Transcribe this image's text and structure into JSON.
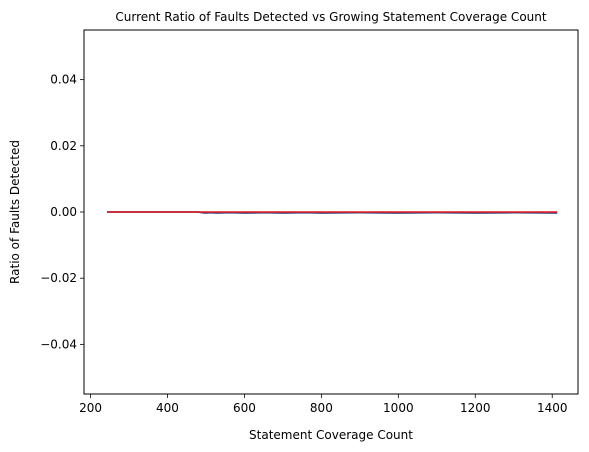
{
  "chart_data": {
    "type": "line",
    "title": "Current Ratio of Faults Detected vs Growing Statement Coverage Count",
    "xlabel": "Statement Coverage Count",
    "ylabel": "Ratio of Faults Detected",
    "xlim": [
      183,
      1467
    ],
    "ylim": [
      -0.055,
      0.055
    ],
    "xticks": [
      200,
      400,
      600,
      800,
      1000,
      1200,
      1400
    ],
    "xtick_labels": [
      "200",
      "400",
      "600",
      "800",
      "1000",
      "1200",
      "1400"
    ],
    "yticks": [
      -0.04,
      -0.02,
      0.0,
      0.02,
      0.04
    ],
    "ytick_labels": [
      "−0.04",
      "−0.02",
      "0.00",
      "0.02",
      "0.04"
    ],
    "grid": false,
    "series": [
      {
        "color": "#3b4a8c",
        "x": [
          243,
          250,
          260,
          275,
          290,
          300,
          310,
          320,
          330,
          340,
          480,
          490,
          500,
          510,
          530,
          560,
          600,
          650,
          700,
          760,
          800,
          900,
          1000,
          1100,
          1200,
          1300,
          1413
        ],
        "y": [
          0,
          0,
          0,
          0,
          0,
          0,
          0,
          0,
          0,
          0,
          0,
          -0.0002,
          -0.0003,
          -0.0002,
          -0.0003,
          -0.0002,
          -0.0003,
          -0.0002,
          -0.0003,
          -0.0002,
          -0.0003,
          -0.0002,
          -0.0003,
          -0.0002,
          -0.0003,
          -0.0002,
          -0.0003
        ]
      },
      {
        "color": "#e41a1c",
        "x": [
          243,
          1413
        ],
        "y": [
          0,
          0
        ]
      }
    ]
  }
}
